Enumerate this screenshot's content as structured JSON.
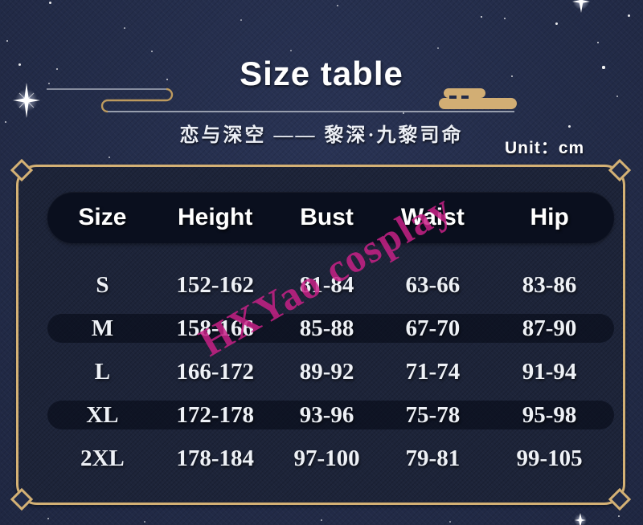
{
  "page": {
    "background_color": "#232c49",
    "accent_gold": "#d2ae74",
    "frame_gold": "#d4b175",
    "watermark_color": "#c72186",
    "header_pill_color": "#0a0f1e"
  },
  "header": {
    "title": "Size table",
    "subtitle": "恋与深空 —— 黎深·九黎司命",
    "unit_label": "Unit：cm"
  },
  "watermark": {
    "text": "HXYao cosplay"
  },
  "table": {
    "headers": [
      "Size",
      "Height",
      "Bust",
      "Waist",
      "Hip"
    ],
    "rows": [
      [
        "S",
        "152-162",
        "81-84",
        "63-66",
        "83-86"
      ],
      [
        "M",
        "158-166",
        "85-88",
        "67-70",
        "87-90"
      ],
      [
        "L",
        "166-172",
        "89-92",
        "71-74",
        "91-94"
      ],
      [
        "XL",
        "172-178",
        "93-96",
        "75-78",
        "95-98"
      ],
      [
        "2XL",
        "178-184",
        "97-100",
        "79-81",
        "99-105"
      ]
    ]
  },
  "chart_data": {
    "type": "table",
    "title": "Size table",
    "subtitle": "恋与深空 —— 黎深·九黎司命",
    "unit": "cm",
    "columns": [
      "Size",
      "Height",
      "Bust",
      "Waist",
      "Hip"
    ],
    "rows": [
      [
        "S",
        "152-162",
        "81-84",
        "63-66",
        "83-86"
      ],
      [
        "M",
        "158-166",
        "85-88",
        "67-70",
        "87-90"
      ],
      [
        "L",
        "166-172",
        "89-92",
        "71-74",
        "91-94"
      ],
      [
        "XL",
        "172-178",
        "93-96",
        "75-78",
        "95-98"
      ],
      [
        "2XL",
        "178-184",
        "97-100",
        "79-81",
        "99-105"
      ]
    ]
  }
}
